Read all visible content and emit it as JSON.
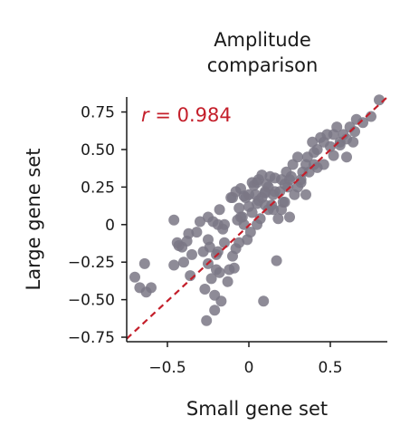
{
  "chart_data": {
    "type": "scatter",
    "title_lines": [
      "Amplitude",
      "comparison"
    ],
    "xlabel": "Small gene set",
    "ylabel": "Large gene set",
    "xlim": [
      -0.75,
      0.85
    ],
    "ylim": [
      -0.78,
      0.85
    ],
    "xticks": [
      -0.5,
      0,
      0.5
    ],
    "xtick_labels": [
      "−0.5",
      "0",
      "0.5"
    ],
    "yticks": [
      0.75,
      0.5,
      0.25,
      0,
      -0.25,
      -0.5,
      -0.75
    ],
    "ytick_labels": [
      "0.75",
      "0.50",
      "0.25",
      "0",
      "−0.25",
      "−0.50",
      "−0.75"
    ],
    "annotation": {
      "symbol": "r",
      "text": " = 0.984"
    },
    "colors": {
      "points": "#7a7785",
      "fit_line": "#c41e2a",
      "annotation": "#c41e2a"
    },
    "fit_line": {
      "x": [
        -0.75,
        0.85
      ],
      "y": [
        -0.76,
        0.85
      ]
    },
    "x": [
      -0.7,
      -0.67,
      -0.64,
      -0.63,
      -0.6,
      -0.46,
      -0.46,
      -0.44,
      -0.43,
      -0.41,
      -0.4,
      -0.38,
      -0.37,
      -0.36,
      -0.35,
      -0.3,
      -0.28,
      -0.27,
      -0.26,
      -0.25,
      -0.25,
      -0.24,
      -0.23,
      -0.22,
      -0.21,
      -0.21,
      -0.2,
      -0.19,
      -0.19,
      -0.18,
      -0.17,
      -0.16,
      -0.15,
      -0.13,
      -0.12,
      -0.11,
      -0.1,
      -0.09,
      -0.08,
      -0.07,
      -0.06,
      -0.06,
      -0.05,
      -0.04,
      -0.03,
      -0.03,
      -0.02,
      -0.01,
      0.0,
      0.01,
      0.02,
      0.03,
      0.04,
      0.05,
      0.05,
      0.06,
      0.07,
      0.08,
      0.08,
      0.09,
      0.1,
      0.1,
      0.11,
      0.12,
      0.13,
      0.14,
      0.15,
      0.16,
      0.17,
      0.18,
      0.19,
      0.2,
      0.21,
      0.22,
      0.23,
      0.24,
      0.25,
      0.27,
      0.28,
      0.3,
      0.32,
      0.33,
      0.35,
      0.37,
      0.39,
      0.4,
      0.42,
      0.44,
      0.46,
      0.48,
      0.5,
      0.52,
      0.54,
      0.56,
      0.58,
      0.6,
      0.62,
      0.64,
      0.66,
      0.7,
      0.75,
      0.8,
      -0.2,
      -0.15,
      -0.05,
      0.0,
      0.05,
      0.1,
      0.15,
      0.2,
      0.25,
      0.3,
      0.35,
      0.4,
      -0.25,
      -0.1,
      0.02,
      0.12,
      0.22,
      0.32,
      0.42,
      0.52,
      0.6,
      -0.32,
      -0.18,
      -0.08,
      0.06,
      0.16,
      0.26,
      0.36,
      0.46,
      0.56,
      0.65
    ],
    "y": [
      -0.35,
      -0.42,
      -0.26,
      -0.45,
      -0.42,
      0.03,
      -0.27,
      -0.12,
      -0.14,
      -0.15,
      -0.25,
      -0.11,
      -0.06,
      -0.34,
      -0.2,
      0.02,
      -0.18,
      -0.43,
      -0.64,
      -0.26,
      0.05,
      -0.15,
      -0.36,
      0.02,
      -0.57,
      -0.47,
      -0.3,
      -0.18,
      0.0,
      -0.32,
      -0.51,
      -0.03,
      -0.12,
      -0.38,
      -0.3,
      0.18,
      -0.21,
      -0.29,
      -0.16,
      0.03,
      0.11,
      -0.12,
      0.24,
      0.05,
      0.0,
      0.19,
      0.18,
      -0.1,
      0.12,
      -0.05,
      0.08,
      0.26,
      0.2,
      0.14,
      0.28,
      0.16,
      0.04,
      0.18,
      0.33,
      -0.51,
      0.21,
      0.13,
      0.27,
      0.1,
      0.32,
      0.13,
      0.2,
      0.31,
      -0.24,
      0.04,
      0.22,
      0.1,
      0.15,
      0.27,
      0.35,
      0.25,
      0.3,
      0.4,
      0.2,
      0.45,
      0.3,
      0.35,
      0.4,
      0.35,
      0.55,
      0.48,
      0.5,
      0.58,
      0.55,
      0.6,
      0.52,
      0.46,
      0.65,
      0.53,
      0.6,
      0.57,
      0.65,
      0.55,
      0.7,
      0.68,
      0.72,
      0.83,
      -0.2,
      0.0,
      0.05,
      0.2,
      0.0,
      0.22,
      0.1,
      0.3,
      0.05,
      0.25,
      0.2,
      0.4,
      -0.1,
      0.18,
      0.28,
      0.25,
      0.15,
      0.28,
      0.38,
      0.6,
      0.45,
      -0.05,
      0.1,
      0.22,
      0.3,
      0.22,
      0.32,
      0.45,
      0.4,
      0.55,
      0.62
    ]
  }
}
